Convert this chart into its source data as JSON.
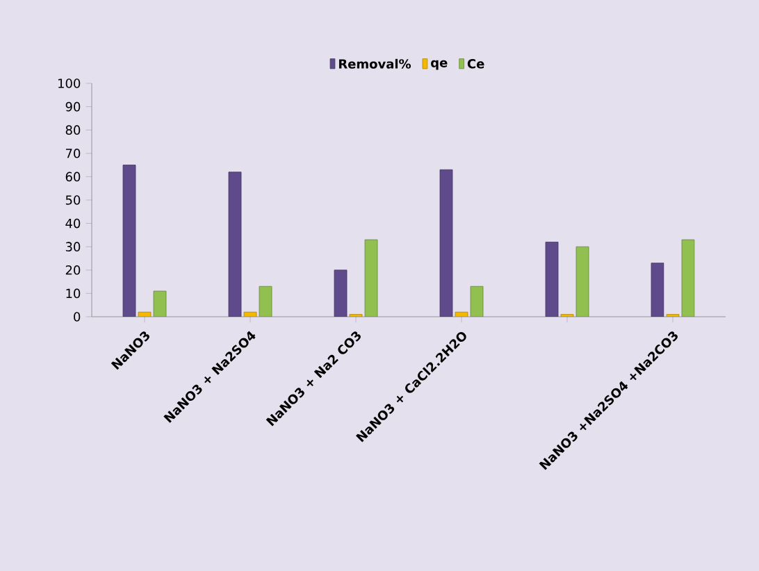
{
  "chart_data": {
    "type": "bar",
    "categories": [
      "NaNO3",
      "NaNO3 + Na2SO4",
      "NaNO3 + Na2 CO3",
      "NaNO3 + CaCl2.2H2O",
      null,
      "NaNO3 +Na2SO4 +Na2CO3"
    ],
    "series": [
      {
        "name": "Removal%",
        "color": "#5f4b8b",
        "values": [
          65,
          62,
          20,
          63,
          32,
          23
        ]
      },
      {
        "name": "qe",
        "color": "#f5b800",
        "values": [
          2,
          2,
          1,
          2,
          1,
          1
        ]
      },
      {
        "name": "Ce",
        "color": "#92c050",
        "values": [
          11,
          13,
          33,
          13,
          30,
          33
        ]
      }
    ],
    "ylim": [
      0,
      100
    ],
    "yticks": [
      0,
      10,
      20,
      30,
      40,
      50,
      60,
      70,
      80,
      90,
      100
    ],
    "legend": "top",
    "grid": false
  }
}
